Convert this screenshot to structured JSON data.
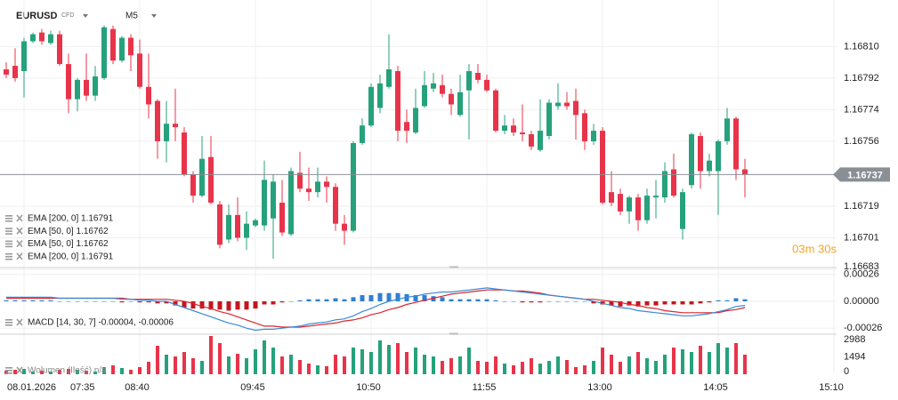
{
  "toolbar": {
    "symbol": "EURUSD",
    "badge": "CFD",
    "timeframe": "M5"
  },
  "chart_data": [
    {
      "type": "candlestick",
      "indicators": [
        "EMA [200, 0] 1.16791",
        "EMA [50, 0] 1.16762",
        "EMA [50, 0] 1.16762",
        "EMA [200, 0] 1.16791"
      ],
      "up_color": "#26a17b",
      "down_color": "#e8344a",
      "open": [
        1.16797,
        1.16799,
        1.16796,
        1.16813,
        1.16818,
        1.16812,
        1.16817,
        1.168,
        1.1678,
        1.16791,
        1.16782,
        1.16792,
        1.1682,
        1.16802,
        1.16815,
        1.16806,
        1.16787,
        1.16779,
        1.16756,
        1.16766,
        1.16761,
        1.16737,
        1.16725,
        1.16747,
        1.1672,
        1.167,
        1.16714,
        1.16701,
        1.16708,
        1.16708,
        1.16712,
        1.16721,
        1.16703,
        1.16738,
        1.16729,
        1.16727,
        1.16733,
        1.1673,
        1.16709,
        1.16705,
        1.16755,
        1.16765,
        1.16775,
        1.16787,
        1.16796,
        1.16767,
        1.16761,
        1.16776,
        1.16786,
        1.16788,
        1.16783,
        1.16771,
        1.16785,
        1.16795,
        1.16791,
        1.16785,
        1.16762,
        1.16765,
        1.16761,
        1.1676,
        1.16751,
        1.16759,
        1.16776,
        1.16778,
        1.16779,
        1.16772,
        1.16756,
        1.16762,
        1.16727,
        1.16726,
        1.16716,
        1.16724,
        1.16711,
        1.16724,
        1.16724,
        1.1674,
        1.16706,
        1.16731,
        1.16759,
        1.16739,
        1.16739,
        1.16756,
        1.16769,
        1.1674
      ],
      "high": [
        1.16801,
        1.16809,
        1.16815,
        1.16818,
        1.1682,
        1.16819,
        1.16819,
        1.16806,
        1.16792,
        1.16806,
        1.16799,
        1.16822,
        1.16822,
        1.16816,
        1.16817,
        1.16814,
        1.16806,
        1.1678,
        1.16779,
        1.16786,
        1.16764,
        1.16739,
        1.16759,
        1.16759,
        1.16722,
        1.1672,
        1.16724,
        1.16716,
        1.16712,
        1.16745,
        1.16737,
        1.16734,
        1.16741,
        1.1675,
        1.16741,
        1.16741,
        1.16736,
        1.16732,
        1.16714,
        1.16756,
        1.16769,
        1.16789,
        1.16794,
        1.16817,
        1.16799,
        1.16774,
        1.16786,
        1.16796,
        1.16795,
        1.16794,
        1.16786,
        1.16794,
        1.168,
        1.168,
        1.16794,
        1.16786,
        1.16771,
        1.16769,
        1.16777,
        1.16762,
        1.1678,
        1.1678,
        1.16789,
        1.16784,
        1.16786,
        1.16774,
        1.16766,
        1.16764,
        1.16739,
        1.16729,
        1.16725,
        1.16726,
        1.16729,
        1.16734,
        1.16744,
        1.16749,
        1.16729,
        1.16761,
        1.16761,
        1.16749,
        1.16757,
        1.16775,
        1.1677,
        1.16746
      ],
      "low": [
        1.16792,
        1.1679,
        1.16781,
        1.16812,
        1.16811,
        1.16811,
        1.16799,
        1.16772,
        1.16773,
        1.16779,
        1.16779,
        1.16791,
        1.168,
        1.16801,
        1.16796,
        1.16786,
        1.16769,
        1.16746,
        1.16744,
        1.16756,
        1.16736,
        1.16721,
        1.16724,
        1.1672,
        1.16695,
        1.16698,
        1.16699,
        1.16694,
        1.16707,
        1.16705,
        1.16689,
        1.16702,
        1.16702,
        1.16727,
        1.16722,
        1.16724,
        1.16721,
        1.16705,
        1.16697,
        1.16704,
        1.16754,
        1.16764,
        1.16772,
        1.16786,
        1.16756,
        1.16755,
        1.1676,
        1.16775,
        1.16784,
        1.16781,
        1.16771,
        1.1677,
        1.16757,
        1.16789,
        1.16784,
        1.16761,
        1.1676,
        1.16759,
        1.16756,
        1.16751,
        1.1675,
        1.16757,
        1.16774,
        1.16774,
        1.16757,
        1.16751,
        1.16754,
        1.1672,
        1.16719,
        1.16714,
        1.16709,
        1.16705,
        1.16709,
        1.16712,
        1.16721,
        1.16724,
        1.167,
        1.16729,
        1.16729,
        1.16736,
        1.16714,
        1.16754,
        1.16734,
        1.16724
      ],
      "close": [
        1.16794,
        1.16792,
        1.16813,
        1.16817,
        1.16813,
        1.16817,
        1.168,
        1.1678,
        1.16791,
        1.16782,
        1.16793,
        1.16821,
        1.16802,
        1.16815,
        1.16805,
        1.16787,
        1.16777,
        1.16756,
        1.16766,
        1.16764,
        1.16737,
        1.16725,
        1.16746,
        1.16721,
        1.16697,
        1.16714,
        1.16701,
        1.16709,
        1.16711,
        1.16734,
        1.16733,
        1.16704,
        1.16739,
        1.16729,
        1.16727,
        1.16733,
        1.1673,
        1.16709,
        1.16705,
        1.16755,
        1.16765,
        1.16787,
        1.16789,
        1.16797,
        1.16762,
        1.16762,
        1.16775,
        1.16788,
        1.16789,
        1.16783,
        1.16777,
        1.16784,
        1.16796,
        1.16791,
        1.16785,
        1.16762,
        1.16765,
        1.16761,
        1.1676,
        1.16753,
        1.16762,
        1.16778,
        1.16778,
        1.16776,
        1.16771,
        1.16756,
        1.16762,
        1.16721,
        1.16721,
        1.16716,
        1.16724,
        1.16711,
        1.16725,
        1.16725,
        1.16739,
        1.16725,
        1.16727,
        1.1676,
        1.16739,
        1.16745,
        1.16756,
        1.16769,
        1.1674,
        1.16737
      ],
      "last_price": 1.16737,
      "countdown": "03m 30s",
      "countdown_color": "#f5a623",
      "ylim": [
        1.16683,
        1.16834
      ],
      "yticks": [
        {
          "value": 1.1681,
          "label": "1.16810"
        },
        1.16792,
        1.16774,
        1.16756,
        1.16719,
        1.16701,
        1.16683
      ],
      "xlim": [
        -0.1,
        93.3
      ],
      "xticks": [
        {
          "value": 2,
          "label": "07:35"
        },
        {
          "value": 15,
          "label": "08:40"
        },
        {
          "value": 28,
          "label": "09:45"
        },
        {
          "value": 41,
          "label": "10:50"
        },
        {
          "value": 54,
          "label": "11:55"
        },
        {
          "value": 67,
          "label": "13:00"
        },
        {
          "value": 80,
          "label": "14:05"
        },
        {
          "value": 93,
          "label": "15:10"
        }
      ],
      "date": "08.01.2026",
      "grid": true
    },
    {
      "type": "macd",
      "label": "MACD [14, 30, 7] -0.00004, -0.00006",
      "macd_color": "#3a8ad6",
      "signal_color": "#d9262e",
      "hist_up_color": "#2f7fd1",
      "hist_down_color": "#c4161c",
      "macd": [
        4e-05,
        4e-05,
        4e-05,
        4e-05,
        4e-05,
        4e-05,
        3e-05,
        3e-05,
        3e-05,
        3e-05,
        3e-05,
        3e-05,
        3e-05,
        2e-05,
        2e-05,
        1e-05,
        1e-05,
        0,
        0,
        -3e-05,
        -6e-05,
        -9e-05,
        -0.00012,
        -0.00015,
        -0.00018,
        -0.00021,
        -0.00023,
        -0.00026,
        -0.00028,
        -0.00027,
        -0.00027,
        -0.00026,
        -0.00025,
        -0.00024,
        -0.00022,
        -0.00021,
        -0.0002,
        -0.00018,
        -0.00017,
        -0.00014,
        -0.0001,
        -7e-05,
        -3e-05,
        0,
        2e-05,
        4e-05,
        5e-05,
        7e-05,
        8e-05,
        9e-05,
        9e-05,
        0.0001,
        0.00011,
        0.00012,
        0.00013,
        0.00012,
        0.00011,
        0.0001,
        9e-05,
        8e-05,
        7e-05,
        6e-05,
        5e-05,
        4e-05,
        3e-05,
        2e-05,
        0,
        -2e-05,
        -4e-05,
        -6e-05,
        -7e-05,
        -9e-05,
        -0.0001,
        -0.00011,
        -0.00012,
        -0.00013,
        -0.00014,
        -0.00014,
        -0.00013,
        -0.00012,
        -0.0001,
        -8e-05,
        -5e-05,
        -4e-05
      ],
      "signal": [
        3e-05,
        3e-05,
        3e-05,
        3e-05,
        3e-05,
        3e-05,
        3e-05,
        3e-05,
        3e-05,
        3e-05,
        3e-05,
        3e-05,
        3e-05,
        3e-05,
        2e-05,
        2e-05,
        2e-05,
        2e-05,
        2e-05,
        1e-05,
        0,
        -2e-05,
        -5e-05,
        -7e-05,
        -0.0001,
        -0.00012,
        -0.00015,
        -0.00018,
        -0.00021,
        -0.00024,
        -0.00024,
        -0.00025,
        -0.00025,
        -0.00025,
        -0.00024,
        -0.00023,
        -0.00022,
        -0.00021,
        -0.00019,
        -0.00018,
        -0.00016,
        -0.00013,
        -0.00011,
        -8e-05,
        -6e-05,
        -3e-05,
        -1e-05,
        1e-05,
        3e-05,
        5e-05,
        7e-05,
        8e-05,
        9e-05,
        0.0001,
        0.00011,
        0.00011,
        0.00011,
        0.0001,
        0.0001,
        9e-05,
        8e-05,
        6e-05,
        5e-05,
        4e-05,
        3e-05,
        2e-05,
        2e-05,
        1e-05,
        0,
        -1e-05,
        -3e-05,
        -4e-05,
        -6e-05,
        -7e-05,
        -9e-05,
        -0.0001,
        -0.00011,
        -0.00011,
        -0.00011,
        -0.00011,
        -0.00011,
        -9e-05,
        -8e-05,
        -6e-05
      ],
      "histogram": [
        1e-05,
        1e-05,
        1e-05,
        1e-05,
        1e-05,
        1e-05,
        0,
        0,
        0,
        0,
        0,
        0,
        0,
        -1e-05,
        0,
        -1e-05,
        -1e-05,
        -2e-05,
        -2e-05,
        -4e-05,
        -6e-05,
        -7e-05,
        -7e-05,
        -8e-05,
        -8e-05,
        -9e-05,
        -8e-05,
        -8e-05,
        -7e-05,
        -3e-05,
        -3e-05,
        -1e-05,
        0,
        1e-05,
        2e-05,
        2e-05,
        2e-05,
        3e-05,
        2e-05,
        4e-05,
        6e-05,
        6e-05,
        8e-05,
        8e-05,
        8e-05,
        7e-05,
        6e-05,
        6e-05,
        5e-05,
        4e-05,
        2e-05,
        2e-05,
        2e-05,
        2e-05,
        2e-05,
        1e-05,
        0,
        0,
        -1e-05,
        -1e-05,
        -1e-05,
        0,
        0,
        0,
        0,
        0,
        -2e-05,
        -3e-05,
        -4e-05,
        -5e-05,
        -4e-05,
        -5e-05,
        -4e-05,
        -4e-05,
        -3e-05,
        -3e-05,
        -3e-05,
        -3e-05,
        -2e-05,
        -1e-05,
        1e-05,
        1e-05,
        3e-05,
        2e-05
      ],
      "ylim": [
        -0.00031,
        0.00031
      ],
      "yticks": [
        0.00026,
        {
          "value": 0,
          "label": "0.00000"
        },
        -0.00026
      ]
    },
    {
      "type": "volume",
      "label": "Wolumen (Ilość) n/a",
      "values": [
        306,
        383,
        460,
        230,
        306,
        230,
        383,
        460,
        383,
        306,
        230,
        613,
        766,
        536,
        383,
        613,
        1072,
        2451,
        1685,
        1532,
        1915,
        1379,
        1149,
        3294,
        2681,
        1532,
        1762,
        1379,
        2145,
        2911,
        2298,
        1532,
        1685,
        1226,
        919,
        766,
        689,
        1685,
        1532,
        2298,
        2145,
        1915,
        2911,
        2528,
        2681,
        1915,
        2298,
        1685,
        1532,
        1149,
        1379,
        1532,
        2298,
        1149,
        1072,
        1532,
        919,
        766,
        1072,
        1379,
        919,
        1149,
        1532,
        1226,
        613,
        766,
        1149,
        2298,
        1685,
        1072,
        1532,
        1915,
        1379,
        1149,
        1685,
        2298,
        2145,
        1915,
        2451,
        1915,
        2681,
        2298,
        2681,
        1685
      ],
      "ylim": [
        0,
        3370
      ],
      "yticks": [
        2988,
        1494,
        0
      ]
    }
  ]
}
